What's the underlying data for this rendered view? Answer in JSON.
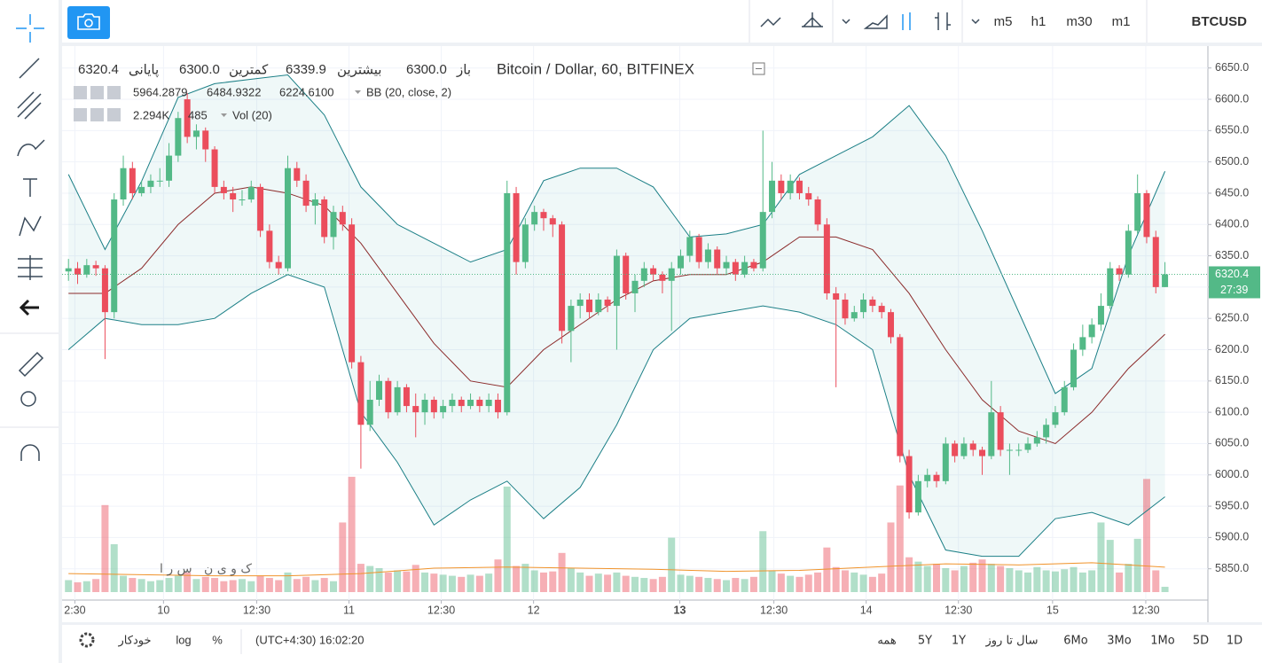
{
  "top_bar": {
    "intervals": [
      "m5",
      "h1",
      "m30",
      "m1"
    ],
    "active_interval": "h1",
    "symbol": "BTCUSD"
  },
  "legend": {
    "title": "Bitcoin / Dollar, 60, BITFINEX",
    "ohlc": [
      {
        "label": "باز",
        "value": "6300.0"
      },
      {
        "label": "بیشترین",
        "value": "6339.9"
      },
      {
        "label": "کمترین",
        "value": "6300.0"
      },
      {
        "label": "پایانی",
        "value": "6320.4"
      }
    ]
  },
  "bb_legend": {
    "values": [
      "5964.2879",
      "6484.9322",
      "6224.6100"
    ],
    "label": "BB (20, close, 2)"
  },
  "vol_legend": {
    "values": [
      "2.294K",
      "485"
    ],
    "label": "Vol (20)"
  },
  "watermark": "ک و ی ن   س ر ا",
  "countdown": "27:39",
  "bottom_bar": {
    "options": [
      "خودکار",
      "log",
      "%"
    ],
    "time": "(UTC+4:30) 16:02:20",
    "ranges": [
      "همه",
      "5Y",
      "1Y",
      "سال تا روز",
      "6Mo",
      "3Mo",
      "1Mo",
      "5D",
      "1D"
    ]
  },
  "chart_data": {
    "type": "candlestick",
    "up_color": "#53b987",
    "down_color": "#eb4d5c",
    "xlim": [
      -0.7,
      124.7
    ],
    "ylim": [
      5800,
      6685
    ],
    "vlim": [
      0,
      11000
    ],
    "grid": true,
    "yticks": [
      {
        "value": 5850,
        "label": "5850.0"
      },
      {
        "value": 5900,
        "label": "5900.0"
      },
      {
        "value": 5950,
        "label": "5950.0"
      },
      {
        "value": 6000,
        "label": "6000.0"
      },
      {
        "value": 6050,
        "label": "6050.0"
      },
      {
        "value": 6100,
        "label": "6100.0"
      },
      {
        "value": 6150,
        "label": "6150.0"
      },
      {
        "value": 6200,
        "label": "6200.0"
      },
      {
        "value": 6250,
        "label": "6250.0"
      },
      {
        "value": 6300,
        "label": "6300.0"
      },
      {
        "value": 6350,
        "label": "6350.0"
      },
      {
        "value": 6400,
        "label": "6400.0"
      },
      {
        "value": 6450,
        "label": "6450.0"
      },
      {
        "value": 6500,
        "label": "6500.0"
      },
      {
        "value": 6550,
        "label": "6550.0"
      },
      {
        "value": 6600,
        "label": "6600.0"
      },
      {
        "value": 6650,
        "label": "6650.0"
      }
    ],
    "xticks": [
      {
        "value": 0.7,
        "label": "2:30"
      },
      {
        "value": 10.4,
        "label": "10"
      },
      {
        "value": 20.6,
        "label": "12:30"
      },
      {
        "value": 30.7,
        "label": "11"
      },
      {
        "value": 40.8,
        "label": "12:30"
      },
      {
        "value": 50.9,
        "label": "12"
      },
      {
        "value": 66.9,
        "label": "13"
      },
      {
        "value": 77.2,
        "label": "12:30"
      },
      {
        "value": 87.3,
        "label": "14"
      },
      {
        "value": 97.4,
        "label": "12:30"
      },
      {
        "value": 107.7,
        "label": "15"
      },
      {
        "value": 117.9,
        "label": "12:30"
      }
    ],
    "candles": [
      [
        6325,
        6345,
        6310,
        6330
      ],
      [
        6330,
        6340,
        6305,
        6320
      ],
      [
        6320,
        6345,
        6315,
        6335
      ],
      [
        6335,
        6342,
        6318,
        6330
      ],
      [
        6330,
        6335,
        6185,
        6260
      ],
      [
        6260,
        6450,
        6250,
        6440
      ],
      [
        6440,
        6510,
        6430,
        6490
      ],
      [
        6490,
        6500,
        6440,
        6450
      ],
      [
        6450,
        6470,
        6445,
        6460
      ],
      [
        6460,
        6480,
        6450,
        6470
      ],
      [
        6470,
        6490,
        6460,
        6470
      ],
      [
        6470,
        6530,
        6460,
        6510
      ],
      [
        6510,
        6580,
        6500,
        6570
      ],
      [
        6600,
        6610,
        6530,
        6540
      ],
      [
        6540,
        6560,
        6520,
        6550
      ],
      [
        6550,
        6555,
        6500,
        6520
      ],
      [
        6520,
        6525,
        6450,
        6460
      ],
      [
        6460,
        6470,
        6440,
        6450
      ],
      [
        6450,
        6460,
        6420,
        6440
      ],
      [
        6440,
        6455,
        6430,
        6440
      ],
      [
        6440,
        6470,
        6435,
        6460
      ],
      [
        6460,
        6465,
        6380,
        6390
      ],
      [
        6390,
        6400,
        6330,
        6340
      ],
      [
        6340,
        6350,
        6320,
        6330
      ],
      [
        6330,
        6510,
        6325,
        6490
      ],
      [
        6490,
        6500,
        6460,
        6470
      ],
      [
        6470,
        6480,
        6420,
        6430
      ],
      [
        6430,
        6450,
        6400,
        6440
      ],
      [
        6440,
        6445,
        6370,
        6380
      ],
      [
        6380,
        6430,
        6360,
        6420
      ],
      [
        6420,
        6430,
        6390,
        6400
      ],
      [
        6400,
        6410,
        6170,
        6180
      ],
      [
        6180,
        6190,
        6010,
        6080
      ],
      [
        6080,
        6150,
        6070,
        6120
      ],
      [
        6120,
        6160,
        6110,
        6150
      ],
      [
        6150,
        6155,
        6090,
        6100
      ],
      [
        6100,
        6150,
        6095,
        6140
      ],
      [
        6140,
        6145,
        6100,
        6110
      ],
      [
        6110,
        6130,
        6060,
        6100
      ],
      [
        6100,
        6130,
        6080,
        6120
      ],
      [
        6120,
        6125,
        6090,
        6100
      ],
      [
        6100,
        6120,
        6090,
        6110
      ],
      [
        6110,
        6130,
        6100,
        6120
      ],
      [
        6120,
        6125,
        6100,
        6110
      ],
      [
        6110,
        6130,
        6105,
        6120
      ],
      [
        6120,
        6125,
        6100,
        6110
      ],
      [
        6110,
        6130,
        6100,
        6120
      ],
      [
        6120,
        6130,
        6090,
        6100
      ],
      [
        6100,
        6470,
        6095,
        6450
      ],
      [
        6450,
        6460,
        6320,
        6340
      ],
      [
        6340,
        6410,
        6330,
        6400
      ],
      [
        6400,
        6430,
        6390,
        6420
      ],
      [
        6420,
        6425,
        6390,
        6410
      ],
      [
        6410,
        6415,
        6380,
        6400
      ],
      [
        6400,
        6405,
        6210,
        6230
      ],
      [
        6230,
        6280,
        6180,
        6270
      ],
      [
        6270,
        6290,
        6250,
        6280
      ],
      [
        6280,
        6290,
        6250,
        6260
      ],
      [
        6260,
        6290,
        6255,
        6280
      ],
      [
        6280,
        6285,
        6260,
        6270
      ],
      [
        6270,
        6360,
        6200,
        6350
      ],
      [
        6350,
        6355,
        6280,
        6290
      ],
      [
        6290,
        6320,
        6260,
        6310
      ],
      [
        6310,
        6340,
        6300,
        6330
      ],
      [
        6330,
        6335,
        6310,
        6320
      ],
      [
        6320,
        6325,
        6290,
        6310
      ],
      [
        6310,
        6340,
        6230,
        6330
      ],
      [
        6330,
        6360,
        6320,
        6350
      ],
      [
        6350,
        6390,
        6340,
        6380
      ],
      [
        6380,
        6385,
        6330,
        6340
      ],
      [
        6340,
        6370,
        6330,
        6360
      ],
      [
        6360,
        6365,
        6320,
        6330
      ],
      [
        6330,
        6350,
        6320,
        6340
      ],
      [
        6340,
        6345,
        6310,
        6320
      ],
      [
        6320,
        6350,
        6315,
        6340
      ],
      [
        6340,
        6345,
        6325,
        6330
      ],
      [
        6330,
        6550,
        6325,
        6420
      ],
      [
        6420,
        6500,
        6410,
        6470
      ],
      [
        6470,
        6480,
        6440,
        6450
      ],
      [
        6450,
        6480,
        6440,
        6470
      ],
      [
        6470,
        6475,
        6440,
        6450
      ],
      [
        6450,
        6460,
        6430,
        6440
      ],
      [
        6440,
        6445,
        6390,
        6400
      ],
      [
        6400,
        6410,
        6280,
        6290
      ],
      [
        6290,
        6300,
        6140,
        6280
      ],
      [
        6280,
        6290,
        6240,
        6250
      ],
      [
        6250,
        6270,
        6245,
        6260
      ],
      [
        6260,
        6290,
        6250,
        6280
      ],
      [
        6280,
        6285,
        6260,
        6270
      ],
      [
        6270,
        6275,
        6250,
        6260
      ],
      [
        6260,
        6265,
        6210,
        6220
      ],
      [
        6220,
        6225,
        6020,
        6030
      ],
      [
        6030,
        6040,
        5930,
        5940
      ],
      [
        5940,
        6000,
        5935,
        5990
      ],
      [
        5990,
        6010,
        5980,
        6000
      ],
      [
        6000,
        6005,
        5980,
        5990
      ],
      [
        5990,
        6060,
        5985,
        6050
      ],
      [
        6050,
        6055,
        6020,
        6030
      ],
      [
        6030,
        6060,
        6025,
        6050
      ],
      [
        6050,
        6055,
        6030,
        6040
      ],
      [
        6040,
        6045,
        6000,
        6030
      ],
      [
        6030,
        6150,
        6025,
        6100
      ],
      [
        6100,
        6110,
        6030,
        6040
      ],
      [
        6040,
        6050,
        6000,
        6040
      ],
      [
        6040,
        6050,
        6030,
        6040
      ],
      [
        6040,
        6060,
        6035,
        6050
      ],
      [
        6050,
        6070,
        6045,
        6060
      ],
      [
        6060,
        6090,
        6050,
        6080
      ],
      [
        6080,
        6110,
        6075,
        6100
      ],
      [
        6100,
        6150,
        6095,
        6140
      ],
      [
        6140,
        6210,
        6135,
        6200
      ],
      [
        6200,
        6240,
        6190,
        6220
      ],
      [
        6220,
        6250,
        6210,
        6240
      ],
      [
        6240,
        6290,
        6230,
        6270
      ],
      [
        6270,
        6340,
        6265,
        6330
      ],
      [
        6330,
        6335,
        6310,
        6320
      ],
      [
        6320,
        6400,
        6315,
        6390
      ],
      [
        6390,
        6480,
        6385,
        6450
      ],
      [
        6450,
        6455,
        6370,
        6380
      ],
      [
        6380,
        6390,
        6290,
        6300
      ],
      [
        6300,
        6339.9,
        6300,
        6320.4
      ]
    ],
    "volume": [
      1100,
      900,
      1000,
      1200,
      8000,
      4400,
      1500,
      1300,
      1200,
      1000,
      1100,
      1300,
      1500,
      1800,
      1200,
      1400,
      1300,
      1000,
      1100,
      1200,
      1000,
      1500,
      1300,
      1100,
      1800,
      1200,
      1400,
      1100,
      1300,
      1000,
      6400,
      10600,
      2600,
      2400,
      2200,
      1800,
      2000,
      1900,
      2500,
      1800,
      1700,
      1600,
      1500,
      1400,
      1600,
      1500,
      1700,
      3000,
      9700,
      2400,
      2600,
      2000,
      1800,
      1900,
      3600,
      2200,
      1800,
      1500,
      1700,
      1600,
      1800,
      1500,
      1400,
      1300,
      1200,
      1400,
      5000,
      1600,
      1500,
      1400,
      1300,
      1200,
      1100,
      1300,
      1200,
      1400,
      5600,
      2000,
      1700,
      1500,
      1400,
      1600,
      1800,
      4100,
      2300,
      2000,
      1800,
      1600,
      1400,
      1700,
      6400,
      9800,
      3200,
      2800,
      2400,
      2600,
      2200,
      2000,
      2400,
      2700,
      3000,
      2600,
      2400,
      2200,
      2000,
      1800,
      2300,
      2000,
      1900,
      2100,
      2300,
      1800,
      2000,
      6400,
      4800,
      1800,
      2600,
      4900,
      10400,
      2000,
      485
    ],
    "bb_x": [
      0,
      4,
      8,
      12,
      16,
      20,
      24,
      28,
      32,
      36,
      40,
      44,
      48,
      52,
      56,
      60,
      64,
      68,
      72,
      76,
      80,
      84,
      88,
      92,
      96,
      100,
      104,
      108,
      112,
      116,
      120
    ],
    "bb_upper": [
      6480,
      6360,
      6469,
      6603,
      6625,
      6632,
      6639,
      6575,
      6460,
      6400,
      6370,
      6340,
      6360,
      6470,
      6490,
      6490,
      6460,
      6380,
      6385,
      6400,
      6480,
      6510,
      6540,
      6590,
      6510,
      6390,
      6260,
      6130,
      6170,
      6350,
      6485
    ],
    "bb_middle": [
      6290,
      6290,
      6330,
      6400,
      6450,
      6460,
      6450,
      6430,
      6370,
      6290,
      6210,
      6150,
      6140,
      6200,
      6240,
      6280,
      6310,
      6320,
      6320,
      6340,
      6380,
      6380,
      6360,
      6290,
      6200,
      6120,
      6070,
      6050,
      6100,
      6170,
      6224.6
    ],
    "bb_lower": [
      6200,
      6250,
      6240,
      6240,
      6250,
      6290,
      6320,
      6300,
      6100,
      6020,
      5920,
      5960,
      5990,
      5930,
      5980,
      6080,
      6200,
      6250,
      6260,
      6270,
      6260,
      6240,
      6200,
      6000,
      5880,
      5870,
      5870,
      5930,
      5940,
      5920,
      5965
    ],
    "bb_colors": {
      "upper": "#1b7f86",
      "middle": "#8b2a2a",
      "lower": "#1b7f86",
      "fill": "rgba(33,150,160,0.07)"
    },
    "vol_ma_x": [
      0,
      8,
      16,
      24,
      32,
      40,
      48,
      56,
      64,
      72,
      80,
      88,
      96,
      104,
      112,
      120
    ],
    "vol_ma": [
      1700,
      1600,
      1500,
      1500,
      1700,
      2200,
      2300,
      2200,
      2100,
      1900,
      2000,
      2300,
      2600,
      2500,
      2700,
      2294
    ],
    "vol_ma_color": "#f0932b"
  }
}
